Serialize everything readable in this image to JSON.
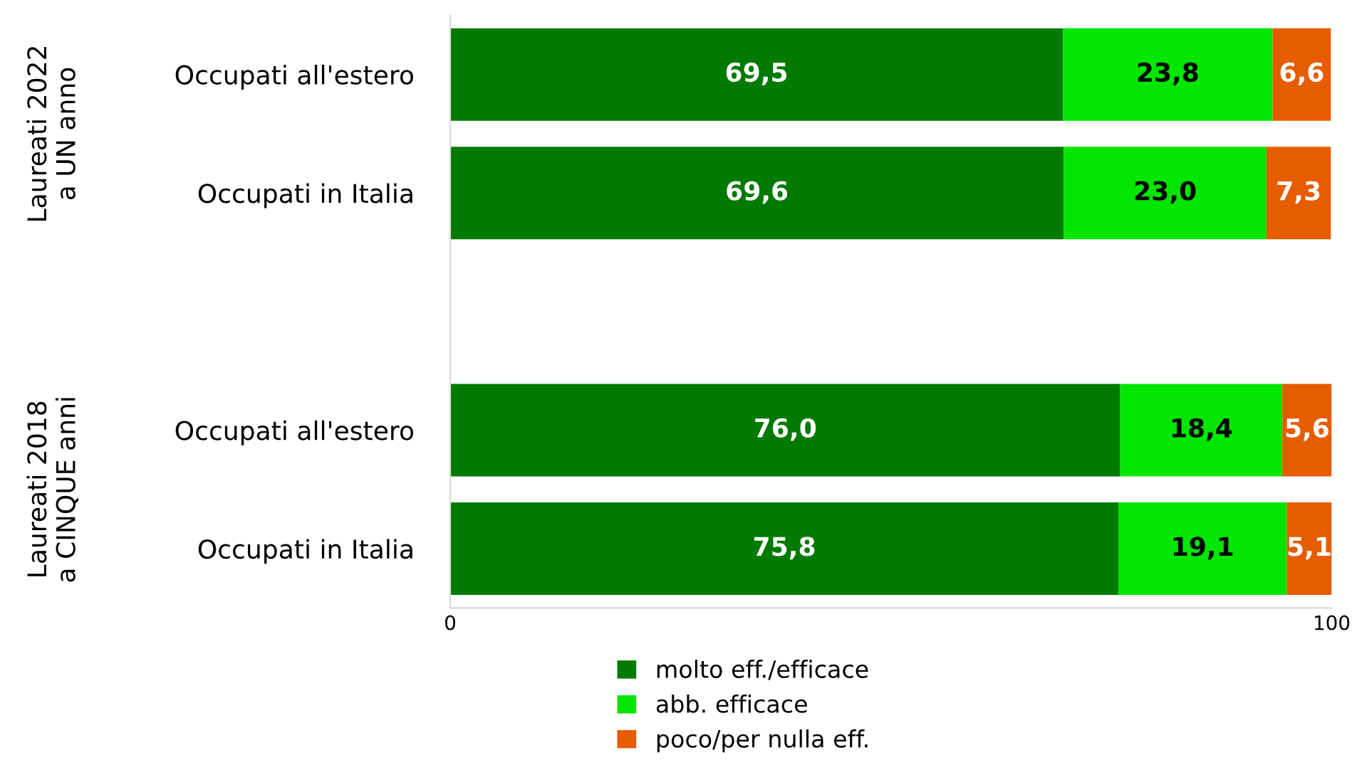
{
  "chart_data": {
    "type": "bar",
    "orientation": "horizontal",
    "stacked": true,
    "categories": [
      "Occupati all'estero",
      "Occupati in Italia",
      null,
      "Occupati all'estero",
      "Occupati in Italia"
    ],
    "series": [
      {
        "name": "molto eff./efficace",
        "color": "#007a00",
        "values": [
          69.5,
          69.6,
          null,
          76.0,
          75.8
        ],
        "value_labels": [
          "69,5",
          "69,6",
          null,
          "76,0",
          "75,8"
        ]
      },
      {
        "name": "abb. efficace",
        "color": "#00e600",
        "values": [
          23.8,
          23.0,
          null,
          18.4,
          19.1
        ],
        "value_labels": [
          "23,8",
          "23,0",
          null,
          "18,4",
          "19,1"
        ]
      },
      {
        "name": "poco/per nulla eff.",
        "color": "#e65c00",
        "values": [
          6.6,
          7.3,
          null,
          5.6,
          5.1
        ],
        "value_labels": [
          "6,6",
          "7,3",
          null,
          "5,6",
          "5,1"
        ]
      }
    ],
    "xlim": [
      0,
      100
    ],
    "xticks": [
      0,
      100
    ],
    "legend": "bottom",
    "grid": false,
    "annotations": [
      "Laureati 2022\na UN anno",
      "Laureati 2018\na CINQUE anni"
    ]
  }
}
